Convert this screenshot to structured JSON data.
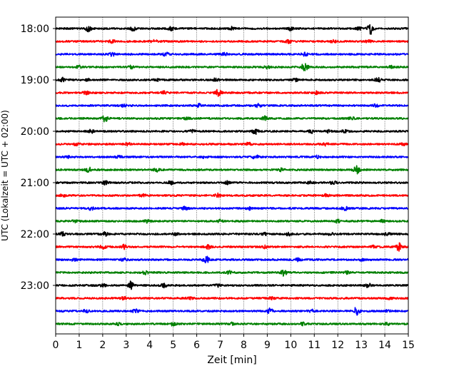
{
  "chart_data": {
    "type": "line",
    "title": "",
    "xlabel": "Zeit  [min]",
    "ylabel": "UTC (Lokalzeit = UTC + 02:00)",
    "xlim": [
      0,
      15
    ],
    "x_ticks": [
      "0",
      "1",
      "2",
      "3",
      "4",
      "5",
      "6",
      "7",
      "8",
      "9",
      "10",
      "11",
      "12",
      "13",
      "14",
      "15"
    ],
    "y_tick_labels": [
      "18:00",
      "19:00",
      "20:00",
      "21:00",
      "22:00",
      "23:00"
    ],
    "grid": "vertical dotted lines at each minute",
    "trace_interval_min": 15,
    "colors": [
      "#000000",
      "#ff0000",
      "#0000ff",
      "#008000"
    ],
    "traces": [
      {
        "start": "18:00",
        "color": "#000000",
        "events": [
          [
            1.4,
            1.0
          ],
          [
            3.3,
            0.6
          ],
          [
            4.9,
            0.6
          ],
          [
            7.5,
            0.5
          ],
          [
            10.0,
            0.6
          ],
          [
            12.9,
            0.4
          ],
          [
            13.4,
            1.8
          ]
        ]
      },
      {
        "start": "18:15",
        "color": "#ff0000",
        "events": [
          [
            2.4,
            0.5
          ],
          [
            4.2,
            0.4
          ],
          [
            9.9,
            0.5
          ],
          [
            11.8,
            0.4
          ],
          [
            13.3,
            0.4
          ]
        ]
      },
      {
        "start": "18:30",
        "color": "#0000ff",
        "events": [
          [
            2.4,
            0.5
          ],
          [
            4.7,
            0.5
          ],
          [
            7.2,
            0.4
          ],
          [
            10.6,
            0.5
          ]
        ]
      },
      {
        "start": "18:45",
        "color": "#008000",
        "events": [
          [
            1.0,
            0.4
          ],
          [
            3.2,
            0.5
          ],
          [
            9.0,
            0.4
          ],
          [
            10.6,
            1.6
          ],
          [
            14.3,
            0.4
          ]
        ]
      },
      {
        "start": "19:00",
        "color": "#000000",
        "events": [
          [
            0.3,
            0.7
          ],
          [
            1.4,
            0.4
          ],
          [
            4.3,
            0.4
          ],
          [
            6.8,
            0.5
          ],
          [
            10.2,
            0.4
          ],
          [
            13.7,
            0.7
          ]
        ]
      },
      {
        "start": "19:15",
        "color": "#ff0000",
        "events": [
          [
            1.3,
            0.4
          ],
          [
            4.6,
            0.4
          ],
          [
            6.9,
            1.1
          ],
          [
            11.1,
            0.4
          ]
        ]
      },
      {
        "start": "19:30",
        "color": "#0000ff",
        "events": [
          [
            2.9,
            0.4
          ],
          [
            6.1,
            0.5
          ],
          [
            8.6,
            0.5
          ],
          [
            13.6,
            0.4
          ]
        ]
      },
      {
        "start": "19:45",
        "color": "#008000",
        "events": [
          [
            2.1,
            1.0
          ],
          [
            5.6,
            0.4
          ],
          [
            8.9,
            0.6
          ],
          [
            12.6,
            0.4
          ]
        ]
      },
      {
        "start": "20:00",
        "color": "#000000",
        "events": [
          [
            1.5,
            0.5
          ],
          [
            5.8,
            0.6
          ],
          [
            8.5,
            0.8
          ],
          [
            10.9,
            0.5
          ],
          [
            11.6,
            0.4
          ],
          [
            12.3,
            0.4
          ]
        ]
      },
      {
        "start": "20:15",
        "color": "#ff0000",
        "events": [
          [
            0.9,
            0.4
          ],
          [
            3.1,
            0.5
          ],
          [
            5.4,
            0.4
          ],
          [
            8.2,
            0.4
          ],
          [
            11.5,
            0.4
          ],
          [
            14.8,
            0.3
          ]
        ]
      },
      {
        "start": "20:30",
        "color": "#0000ff",
        "events": [
          [
            0.5,
            0.4
          ],
          [
            2.7,
            0.4
          ],
          [
            6.3,
            0.4
          ],
          [
            8.5,
            0.6
          ],
          [
            11.1,
            0.4
          ]
        ]
      },
      {
        "start": "20:45",
        "color": "#008000",
        "events": [
          [
            1.4,
            0.8
          ],
          [
            4.3,
            0.5
          ],
          [
            9.6,
            0.4
          ],
          [
            12.8,
            1.3
          ]
        ]
      },
      {
        "start": "21:00",
        "color": "#000000",
        "events": [
          [
            2.1,
            0.6
          ],
          [
            4.9,
            0.5
          ],
          [
            7.3,
            0.4
          ],
          [
            10.8,
            0.4
          ],
          [
            11.8,
            0.5
          ]
        ]
      },
      {
        "start": "21:15",
        "color": "#ff0000",
        "events": [
          [
            0.3,
            0.4
          ],
          [
            3.7,
            0.4
          ],
          [
            6.9,
            0.6
          ],
          [
            11.5,
            0.4
          ]
        ]
      },
      {
        "start": "21:30",
        "color": "#0000ff",
        "events": [
          [
            1.5,
            0.5
          ],
          [
            5.5,
            0.5
          ],
          [
            8.2,
            0.5
          ],
          [
            12.3,
            0.6
          ]
        ]
      },
      {
        "start": "21:45",
        "color": "#008000",
        "events": [
          [
            0.8,
            0.4
          ],
          [
            3.9,
            0.5
          ],
          [
            7.0,
            0.4
          ],
          [
            12.0,
            0.5
          ],
          [
            13.9,
            0.4
          ]
        ]
      },
      {
        "start": "22:00",
        "color": "#000000",
        "events": [
          [
            0.3,
            0.6
          ],
          [
            2.1,
            0.6
          ],
          [
            5.1,
            0.4
          ],
          [
            8.9,
            0.4
          ],
          [
            9.9,
            0.5
          ],
          [
            11.7,
            0.4
          ],
          [
            14.1,
            0.4
          ]
        ]
      },
      {
        "start": "22:15",
        "color": "#ff0000",
        "events": [
          [
            2.0,
            0.6
          ],
          [
            2.9,
            0.6
          ],
          [
            6.5,
            0.7
          ],
          [
            8.9,
            0.4
          ],
          [
            13.5,
            0.4
          ],
          [
            14.6,
            1.2
          ]
        ]
      },
      {
        "start": "22:30",
        "color": "#0000ff",
        "events": [
          [
            0.8,
            0.4
          ],
          [
            2.9,
            0.4
          ],
          [
            6.4,
            1.2
          ],
          [
            10.3,
            0.4
          ],
          [
            13.0,
            0.4
          ]
        ]
      },
      {
        "start": "22:45",
        "color": "#008000",
        "events": [
          [
            3.8,
            0.7
          ],
          [
            7.4,
            0.5
          ],
          [
            9.7,
            1.0
          ],
          [
            12.4,
            0.4
          ]
        ]
      },
      {
        "start": "23:00",
        "color": "#000000",
        "events": [
          [
            2.0,
            0.5
          ],
          [
            3.2,
            1.3
          ],
          [
            4.6,
            0.6
          ],
          [
            6.9,
            0.4
          ],
          [
            13.3,
            0.7
          ]
        ]
      },
      {
        "start": "23:15",
        "color": "#ff0000",
        "events": [
          [
            2.9,
            0.4
          ],
          [
            5.7,
            0.4
          ],
          [
            9.2,
            0.4
          ],
          [
            14.2,
            0.3
          ]
        ]
      },
      {
        "start": "23:30",
        "color": "#0000ff",
        "events": [
          [
            1.3,
            0.5
          ],
          [
            3.4,
            0.5
          ],
          [
            9.1,
            0.9
          ],
          [
            10.9,
            0.4
          ],
          [
            12.8,
            1.3
          ],
          [
            14.1,
            0.4
          ]
        ]
      },
      {
        "start": "23:45",
        "color": "#008000",
        "events": [
          [
            2.7,
            0.4
          ],
          [
            5.0,
            0.5
          ],
          [
            7.5,
            0.4
          ],
          [
            10.5,
            0.4
          ],
          [
            14.1,
            0.6
          ]
        ]
      }
    ]
  }
}
